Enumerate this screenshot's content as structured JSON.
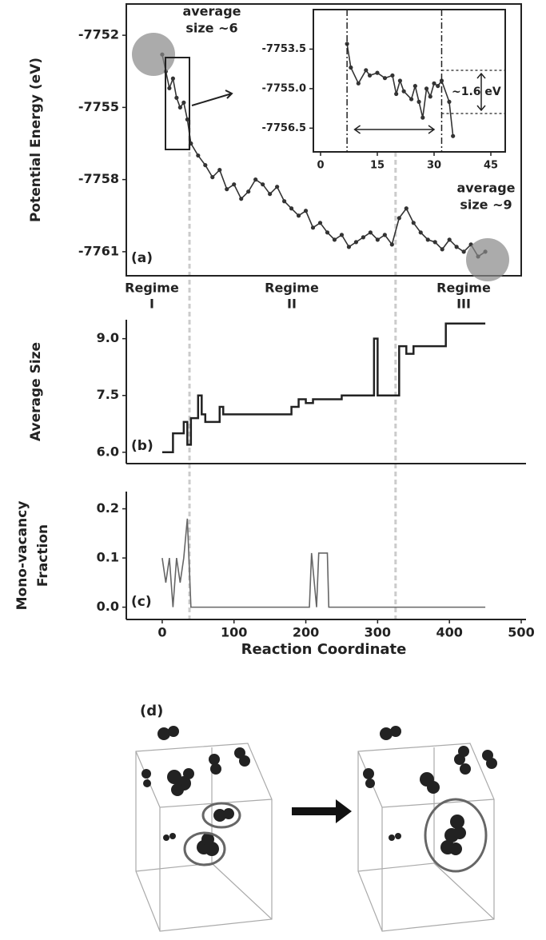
{
  "chart_data": [
    {
      "type": "line",
      "panel_label": "(a)",
      "ylabel": "Potential Energy (eV)",
      "color": "#333333",
      "markers": true,
      "x": [
        0,
        5,
        10,
        15,
        20,
        25,
        30,
        35,
        40,
        50,
        60,
        70,
        80,
        90,
        100,
        110,
        120,
        130,
        140,
        150,
        160,
        170,
        180,
        190,
        200,
        210,
        220,
        230,
        240,
        250,
        260,
        270,
        280,
        290,
        300,
        310,
        320,
        330,
        340,
        350,
        360,
        370,
        380,
        390,
        400,
        410,
        420,
        430,
        440,
        450
      ],
      "values": [
        -7752.8,
        -7753.5,
        -7754.2,
        -7753.8,
        -7754.6,
        -7755.0,
        -7754.8,
        -7755.5,
        -7756.5,
        -7757.0,
        -7757.4,
        -7757.9,
        -7757.6,
        -7758.4,
        -7758.2,
        -7758.8,
        -7758.5,
        -7758.0,
        -7758.2,
        -7758.6,
        -7758.3,
        -7758.9,
        -7759.2,
        -7759.5,
        -7759.3,
        -7760.0,
        -7759.8,
        -7760.2,
        -7760.5,
        -7760.3,
        -7760.8,
        -7760.6,
        -7760.4,
        -7760.2,
        -7760.5,
        -7760.3,
        -7760.7,
        -7759.6,
        -7759.2,
        -7759.8,
        -7760.2,
        -7760.5,
        -7760.6,
        -7760.9,
        -7760.5,
        -7760.8,
        -7761.0,
        -7760.7,
        -7761.2,
        -7761.0
      ],
      "xlim": [
        -50,
        500
      ],
      "ylim": [
        -7762,
        -7750.7
      ],
      "yticks": [
        -7752,
        -7755,
        -7758,
        -7761
      ],
      "annotations": [
        [
          "average",
          "size ~6"
        ],
        [
          "average",
          "size ~9"
        ]
      ]
    },
    {
      "type": "line",
      "color": "#333333",
      "markers": true,
      "x": [
        7,
        8,
        10,
        12,
        13,
        15,
        17,
        19,
        20,
        21,
        22,
        24,
        25,
        26,
        27,
        28,
        29,
        30,
        31,
        32,
        34,
        35
      ],
      "values": [
        -7753.3,
        -7754.2,
        -7754.8,
        -7754.3,
        -7754.5,
        -7754.4,
        -7754.6,
        -7754.5,
        -7755.2,
        -7754.7,
        -7755.1,
        -7755.4,
        -7754.9,
        -7755.5,
        -7756.1,
        -7755.0,
        -7755.3,
        -7754.8,
        -7754.9,
        -7754.7,
        -7755.5,
        -7756.8
      ],
      "xlim": [
        -1.9,
        48.8
      ],
      "ylim": [
        -7757.4,
        -7752
      ],
      "xticks": [
        0,
        15,
        30,
        45
      ],
      "yticks": [
        {
          "value": -7753.5,
          "label": "-7753.5"
        },
        {
          "value": -7755,
          "label": "-7755.0"
        },
        {
          "value": -7756.5,
          "label": "-7756.5"
        }
      ],
      "annotations": [
        [
          "~1.6 eV"
        ]
      ]
    },
    {
      "type": "step",
      "panel_label": "(b)",
      "ylabel": "Average Size",
      "color": "#222222",
      "x": [
        0,
        15,
        30,
        35,
        40,
        50,
        55,
        60,
        80,
        85,
        95,
        110,
        130,
        180,
        190,
        200,
        210,
        250,
        290,
        295,
        300,
        325,
        330,
        340,
        350,
        385,
        395,
        410,
        450
      ],
      "values": [
        6.0,
        6.5,
        6.8,
        6.2,
        6.9,
        7.5,
        7.0,
        6.8,
        7.2,
        7.0,
        7.0,
        7.0,
        7.0,
        7.2,
        7.4,
        7.3,
        7.4,
        7.5,
        7.5,
        9.0,
        7.5,
        7.5,
        8.8,
        8.6,
        8.8,
        8.8,
        9.4,
        9.4,
        9.4
      ],
      "xlim": [
        -50,
        500
      ],
      "ylim": [
        5.7,
        9.5
      ],
      "yticks": [
        {
          "value": 9,
          "label": "9.0"
        },
        {
          "value": 7.5,
          "label": "7.5"
        },
        {
          "value": 6,
          "label": "6.0"
        }
      ]
    },
    {
      "type": "line",
      "panel_label": "(c)",
      "ylabel": [
        "Mono-vacancy",
        "Fraction"
      ],
      "xlabel": "Reaction Coordinate",
      "color": "#666666",
      "x": [
        0,
        5,
        10,
        15,
        20,
        25,
        30,
        35,
        40,
        205,
        208,
        215,
        218,
        230,
        232,
        450
      ],
      "values": [
        0.1,
        0.05,
        0.1,
        0.0,
        0.1,
        0.05,
        0.1,
        0.18,
        0.0,
        0.0,
        0.11,
        0.0,
        0.11,
        0.11,
        0.0,
        0.0
      ],
      "xlim": [
        -50,
        500
      ],
      "ylim": [
        -0.025,
        0.235
      ],
      "xticks": [
        0,
        100,
        200,
        300,
        400,
        500
      ],
      "yticks": [
        {
          "value": 0,
          "label": "0.0"
        },
        0.1,
        0.2
      ]
    }
  ],
  "regime_boundaries": [
    38,
    325
  ],
  "regimes": [
    [
      "Regime",
      "I"
    ],
    [
      "Regime",
      "II"
    ],
    [
      "Regime",
      "III"
    ]
  ],
  "illustration": {
    "label": "(d)"
  }
}
